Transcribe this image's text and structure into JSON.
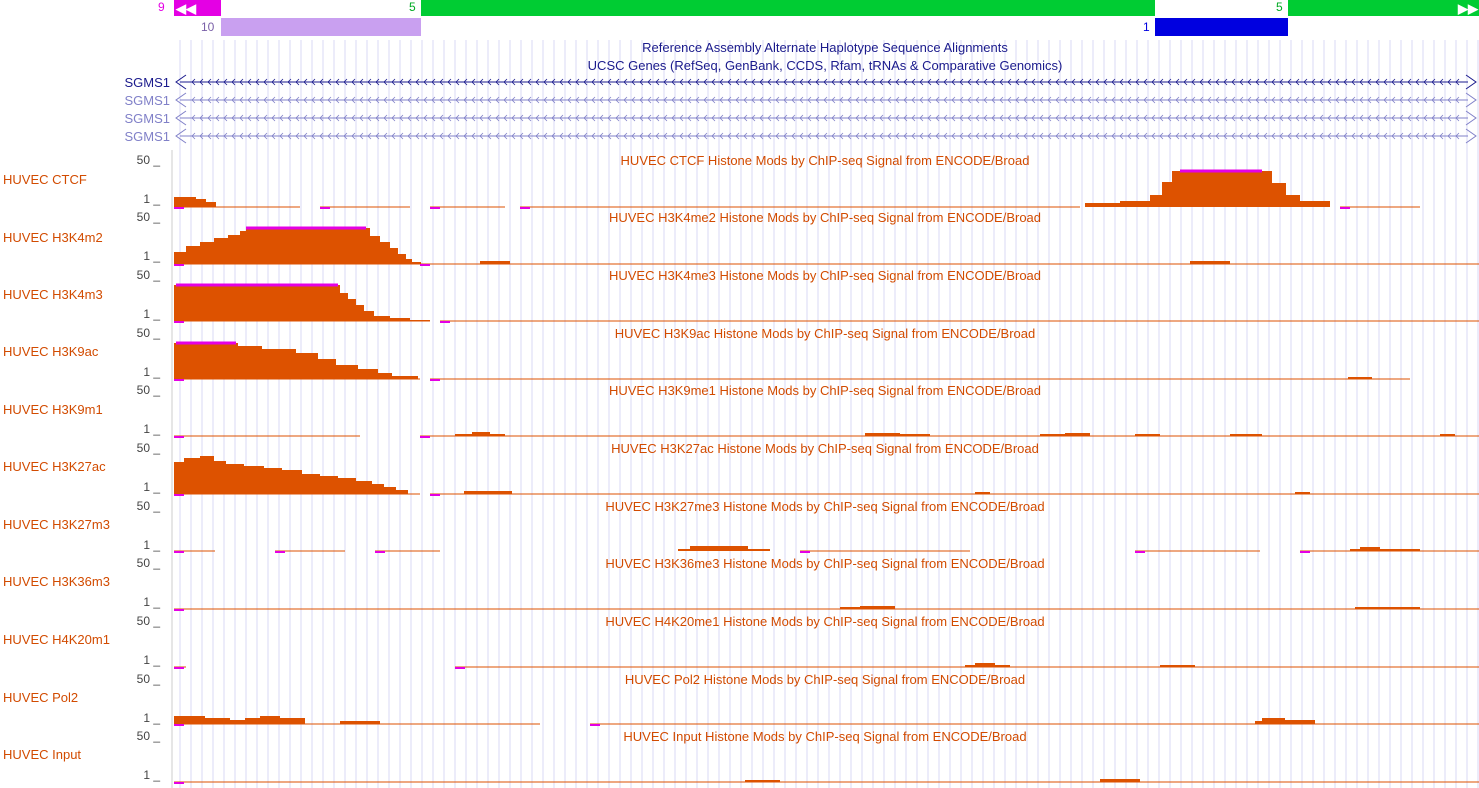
{
  "chain_track": {
    "left_number": "9",
    "mid_number": "5",
    "right_number": "5",
    "sub_left_number": "10",
    "sub_right_number": "1"
  },
  "header_titles": {
    "alt_haplotype": "Reference Assembly Alternate Haplotype Sequence Alignments",
    "ucsc_genes": "UCSC Genes (RefSeq, GenBank, CCDS, Rfam, tRNAs & Comparative Genomics)"
  },
  "genes": [
    "SGMS1",
    "SGMS1",
    "SGMS1",
    "SGMS1"
  ],
  "scale": {
    "max": "50",
    "min": "1"
  },
  "tracks": [
    {
      "label": "HUVEC CTCF",
      "title": "HUVEC CTCF Histone Mods by ChIP-seq Signal from ENCODE/Broad"
    },
    {
      "label": "HUVEC H3K4m2",
      "title": "HUVEC H3K4me2 Histone Mods by ChIP-seq Signal from ENCODE/Broad"
    },
    {
      "label": "HUVEC H3K4m3",
      "title": "HUVEC H3K4me3 Histone Mods by ChIP-seq Signal from ENCODE/Broad"
    },
    {
      "label": "HUVEC H3K9ac",
      "title": "HUVEC H3K9ac Histone Mods by ChIP-seq Signal from ENCODE/Broad"
    },
    {
      "label": "HUVEC H3K9m1",
      "title": "HUVEC H3K9me1 Histone Mods by ChIP-seq Signal from ENCODE/Broad"
    },
    {
      "label": "HUVEC H3K27ac",
      "title": "HUVEC H3K27ac Histone Mods by ChIP-seq Signal from ENCODE/Broad"
    },
    {
      "label": "HUVEC H3K27m3",
      "title": "HUVEC H3K27me3 Histone Mods by ChIP-seq Signal from ENCODE/Broad"
    },
    {
      "label": "HUVEC H3K36m3",
      "title": "HUVEC H3K36me3 Histone Mods by ChIP-seq Signal from ENCODE/Broad"
    },
    {
      "label": "HUVEC H4K20m1",
      "title": "HUVEC H4K20me1 Histone Mods by ChIP-seq Signal from ENCODE/Broad"
    },
    {
      "label": "HUVEC Pol2",
      "title": "HUVEC Pol2 Histone Mods by ChIP-seq Signal from ENCODE/Broad"
    },
    {
      "label": "HUVEC Input",
      "title": "HUVEC Input Histone Mods by ChIP-seq Signal from ENCODE/Broad"
    }
  ],
  "colors": {
    "signal": "#dd5200",
    "clipped": "#e400e4",
    "chain_green": "#00cc33",
    "chain_purple": "#c9a0f0",
    "chain_blue": "#0000e0",
    "gene_blue": "#1a1a8c",
    "gene_light": "#8080c8"
  }
}
